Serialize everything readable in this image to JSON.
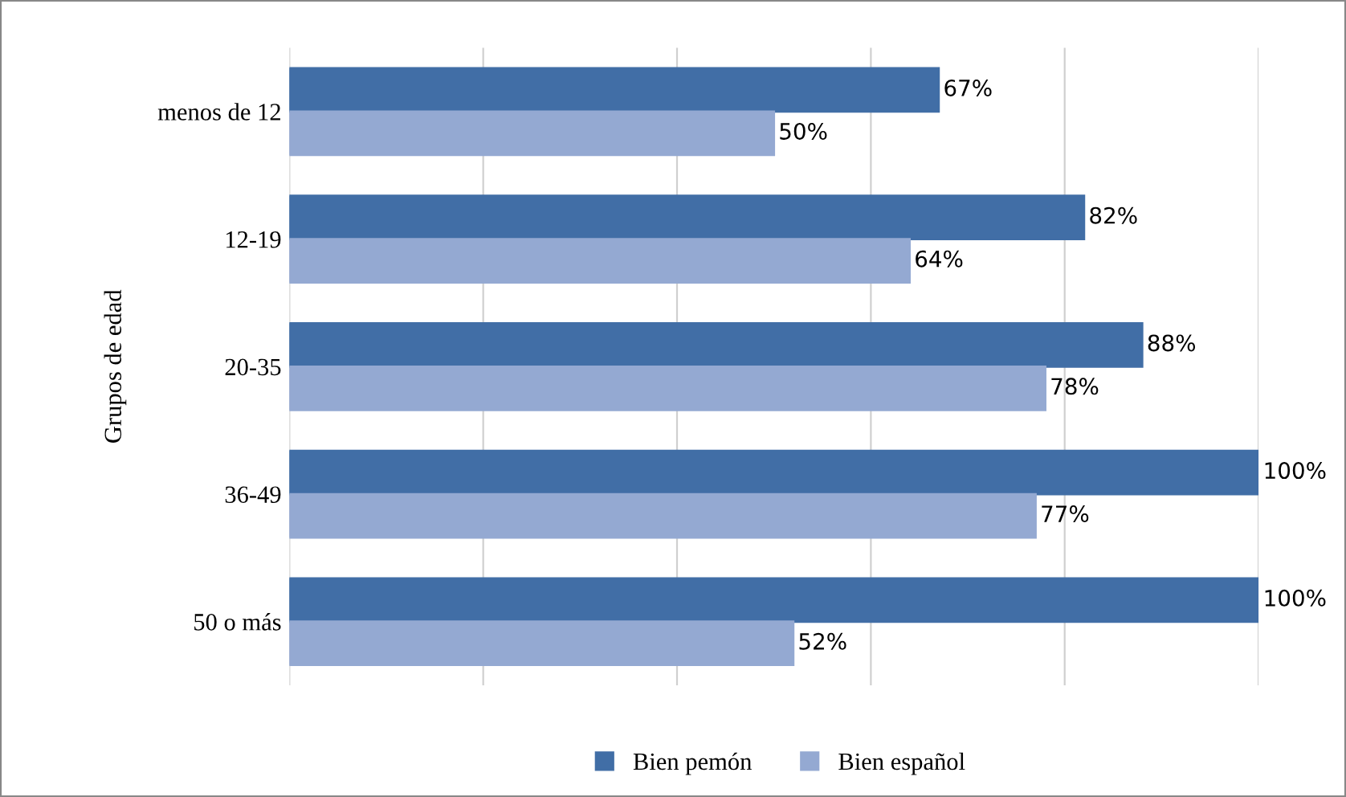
{
  "chart_data": {
    "type": "bar",
    "orientation": "horizontal",
    "ylabel": "Grupos de edad",
    "categories": [
      "menos de 12",
      "12-19",
      "20-35",
      "36-49",
      "50 o más"
    ],
    "series": [
      {
        "name": "Bien pemón",
        "color": "#416ea6",
        "values": [
          67,
          82,
          88,
          100,
          100
        ],
        "value_labels": [
          "67%",
          "82%",
          "88%",
          "100%",
          "100%"
        ]
      },
      {
        "name": "Bien español",
        "color": "#94a9d2",
        "values": [
          50,
          64,
          78,
          77,
          52
        ],
        "value_labels": [
          "50%",
          "64%",
          "78%",
          "77%",
          "52%"
        ]
      }
    ],
    "xlim": [
      0,
      100
    ],
    "xticks": [
      {
        "value": 0,
        "label": null
      },
      {
        "value": 20,
        "label": null
      },
      {
        "value": 40,
        "label": null
      },
      {
        "value": 60,
        "label": null
      },
      {
        "value": 80,
        "label": null
      },
      {
        "value": 100,
        "label": null
      }
    ],
    "tick_labels": "y",
    "grid": "x",
    "legend": "bottom"
  }
}
